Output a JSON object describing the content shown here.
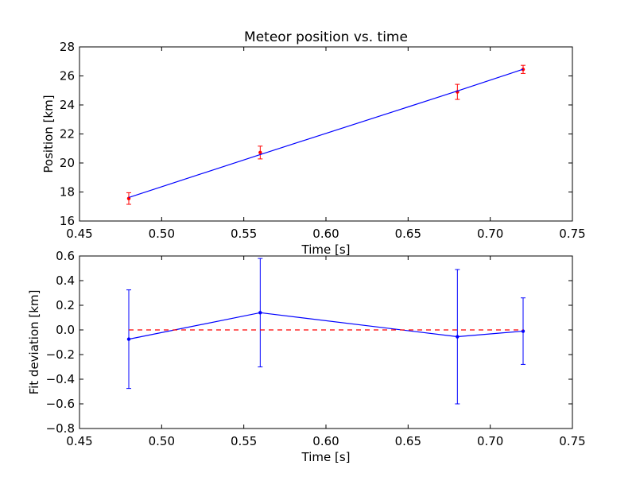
{
  "chart_data": [
    {
      "type": "line",
      "title": "Meteor position vs. time",
      "xlabel": "Time [s]",
      "ylabel": "Position [km]",
      "xlim": [
        0.45,
        0.75
      ],
      "ylim": [
        16,
        28
      ],
      "xticks": [
        "0.45",
        "0.50",
        "0.55",
        "0.60",
        "0.65",
        "0.70",
        "0.75"
      ],
      "yticks": [
        "16",
        "18",
        "20",
        "22",
        "24",
        "26",
        "28"
      ],
      "grid": false,
      "series": [
        {
          "kind": "errorbar-points",
          "color": "#ff0000",
          "x": [
            0.48,
            0.56,
            0.68,
            0.72
          ],
          "y": [
            17.55,
            20.72,
            24.9,
            26.45
          ],
          "yerr": [
            0.4,
            0.44,
            0.52,
            0.28
          ]
        },
        {
          "kind": "fit-line",
          "color": "#0000ff",
          "x": [
            0.48,
            0.56,
            0.68,
            0.72
          ],
          "y": [
            17.62,
            20.58,
            24.96,
            26.46
          ]
        }
      ]
    },
    {
      "type": "line",
      "title": "",
      "xlabel": "Time [s]",
      "ylabel": "Fit deviation [km]",
      "xlim": [
        0.45,
        0.75
      ],
      "ylim": [
        -0.8,
        0.6
      ],
      "xticks": [
        "0.45",
        "0.50",
        "0.55",
        "0.60",
        "0.65",
        "0.70",
        "0.75"
      ],
      "yticks": [
        "0.6",
        "0.4",
        "0.2",
        "0.0",
        "−0.2",
        "−0.4",
        "−0.6",
        "−0.8"
      ],
      "grid": false,
      "series": [
        {
          "kind": "errorbar-line",
          "color": "#0000ff",
          "x": [
            0.48,
            0.56,
            0.68,
            0.72
          ],
          "y": [
            -0.075,
            0.14,
            -0.055,
            -0.01
          ],
          "yerr": [
            0.4,
            0.44,
            0.545,
            0.27
          ]
        },
        {
          "kind": "zero-reference",
          "color": "#ff0000",
          "style": "dashed",
          "x": [
            0.48,
            0.72
          ],
          "y": [
            0,
            0
          ]
        }
      ]
    }
  ]
}
